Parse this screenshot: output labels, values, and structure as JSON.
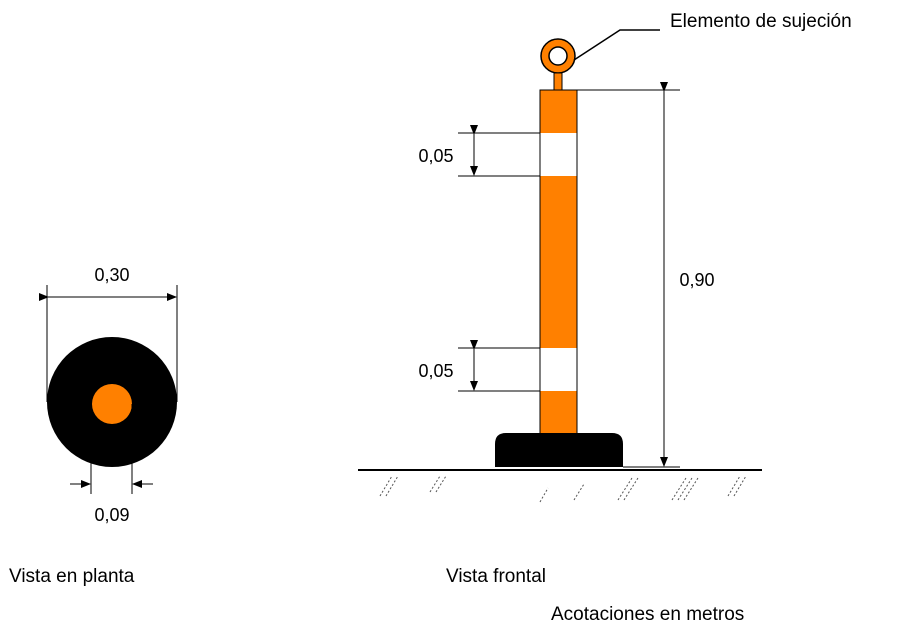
{
  "colors": {
    "orange": "#ff8000",
    "black": "#000000",
    "white": "#ffffff",
    "dimension_line": "#000000"
  },
  "plan_view": {
    "caption": "Vista en planta",
    "outer_diameter_label": "0,30",
    "inner_diameter_label": "0,09"
  },
  "front_view": {
    "caption": "Vista frontal",
    "fastener_label": "Elemento de sujeción",
    "band_top_label": "0,05",
    "band_bottom_label": "0,05",
    "height_label": "0,90"
  },
  "units_note": "Acotaciones en metros"
}
